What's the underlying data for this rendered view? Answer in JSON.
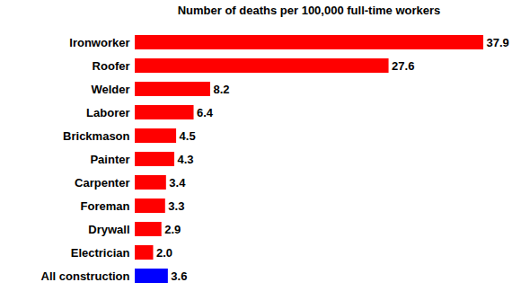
{
  "chart_data": {
    "type": "bar",
    "orientation": "horizontal",
    "title": "Number of deaths per 100,000 full-time workers",
    "categories": [
      "Ironworker",
      "Roofer",
      "Welder",
      "Laborer",
      "Brickmason",
      "Painter",
      "Carpenter",
      "Foreman",
      "Drywall",
      "Electrician",
      "All construction"
    ],
    "values": [
      37.9,
      27.6,
      8.2,
      6.4,
      4.5,
      4.3,
      3.4,
      3.3,
      2.9,
      2.0,
      3.6
    ],
    "value_labels": [
      "37.9",
      "27.6",
      "8.2",
      "6.4",
      "4.5",
      "4.3",
      "3.4",
      "3.3",
      "2.9",
      "2.0",
      "3.6"
    ],
    "colors": [
      "#ff0000",
      "#ff0000",
      "#ff0000",
      "#ff0000",
      "#ff0000",
      "#ff0000",
      "#ff0000",
      "#ff0000",
      "#ff0000",
      "#ff0000",
      "#0000ff"
    ],
    "data_labels": true,
    "tick_labels": "y",
    "grid": false
  }
}
